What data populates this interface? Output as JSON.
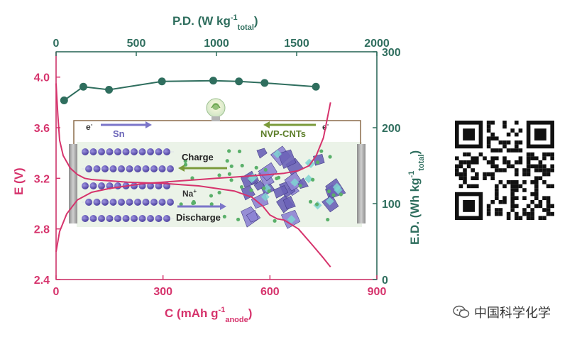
{
  "chart_data": [
    {
      "type": "line",
      "xlabel": "C (mAh g",
      "xlabel_sup": "-1",
      "xlabel_sub": "anode",
      "xlabel_close": ")",
      "ylabel": "E (V)",
      "xlim": [
        0,
        900
      ],
      "ylim": [
        2.4,
        4.2
      ],
      "x_ticks": [
        "0",
        "300",
        "600",
        "900"
      ],
      "y_ticks": [
        "2.4",
        "2.8",
        "3.2",
        "3.6",
        "4.0"
      ],
      "colors": {
        "curve": "#d6336c",
        "axis": "#d6336c"
      },
      "series": [
        {
          "role": "charge",
          "x": [
            0,
            10,
            30,
            60,
            100,
            150,
            200,
            250,
            300,
            350,
            400,
            450,
            500,
            550,
            600,
            640,
            680,
            710,
            730,
            750,
            760,
            770
          ],
          "y": [
            2.62,
            2.78,
            2.92,
            3.03,
            3.09,
            3.12,
            3.14,
            3.16,
            3.17,
            3.18,
            3.19,
            3.2,
            3.21,
            3.22,
            3.23,
            3.24,
            3.26,
            3.3,
            3.38,
            3.52,
            3.66,
            3.8
          ]
        },
        {
          "role": "discharge",
          "x": [
            0,
            5,
            10,
            20,
            40,
            60,
            80,
            100,
            150,
            200,
            300,
            400,
            500,
            550,
            580,
            600,
            620,
            640,
            680,
            720,
            750,
            770
          ],
          "y": [
            3.95,
            3.7,
            3.5,
            3.38,
            3.28,
            3.23,
            3.2,
            3.19,
            3.18,
            3.17,
            3.16,
            3.14,
            3.1,
            3.05,
            2.98,
            2.91,
            2.88,
            2.87,
            2.8,
            2.67,
            2.57,
            2.5
          ]
        }
      ]
    },
    {
      "type": "scatter",
      "xlabel": "P.D. (W kg",
      "xlabel_sup": "-1",
      "xlabel_sub": "total",
      "xlabel_close": ")",
      "ylabel": "E.D. (Wh kg",
      "ylabel_sup": "-1",
      "ylabel_sub": "total",
      "ylabel_close": ")",
      "xlim": [
        0,
        2000
      ],
      "ylim": [
        0,
        300
      ],
      "x_ticks": [
        "0",
        "500",
        "1000",
        "1500",
        "2000"
      ],
      "y_ticks": [
        "0",
        "100",
        "200",
        "300"
      ],
      "colors": {
        "points": "#2f6e5e",
        "axis": "#2f6e5e"
      },
      "series": [
        {
          "x": [
            50,
            170,
            330,
            660,
            980,
            1140,
            1300,
            1620
          ],
          "y": [
            236,
            254,
            250,
            261,
            262,
            261,
            259,
            254
          ]
        }
      ]
    }
  ],
  "inset": {
    "label_e_left": "e",
    "label_e_right": "e",
    "electron_sup": "-",
    "label_anode": "Sn",
    "label_cathode": "NVP-CNTs",
    "label_charge": "Charge",
    "label_discharge": "Discharge",
    "label_ion": "Na",
    "ion_sup": "+",
    "icon": "light-bulb-icon"
  },
  "qr_icon": "qr-code-icon",
  "watermark": {
    "icon": "wechat-icon",
    "text": "中国科学化学"
  }
}
